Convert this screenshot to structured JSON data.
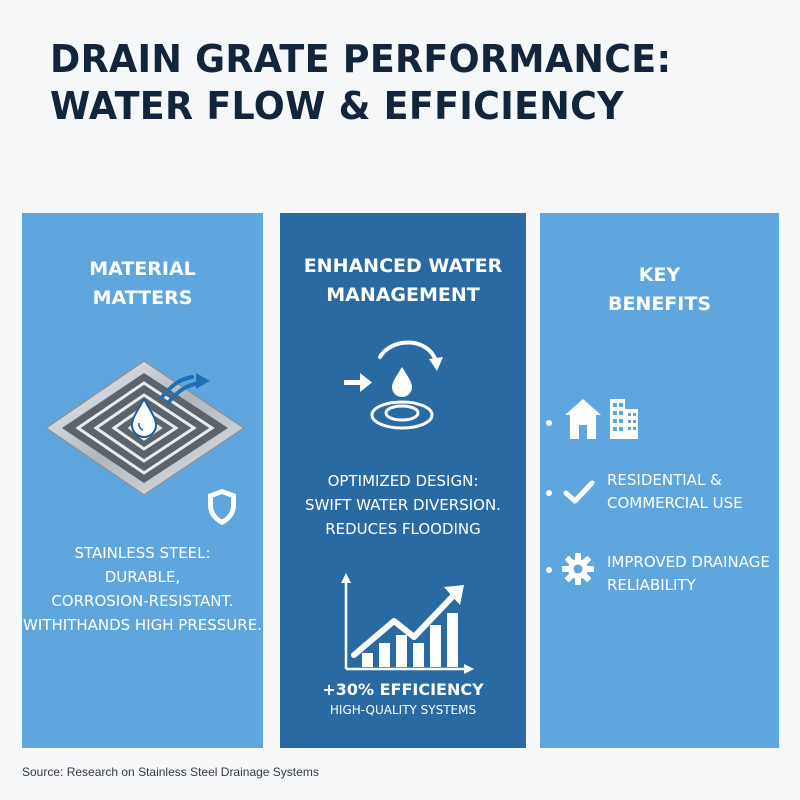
{
  "header": {
    "title_line1": "DRAIN GRATE PERFORMANCE:",
    "title_line2": "WATER FLOW & EFFICIENCY"
  },
  "panels": {
    "material": {
      "title_line1": "MATERIAL",
      "title_line2": "MATTERS",
      "body_line1": "STAINLESS STEEL:",
      "body_line2": "DURABLE,",
      "body_line3": "CORROSION-RESISTANT.",
      "body_line4": "WITHITHANDS HIGH PRESSURE.",
      "icons": [
        "drain-grate-icon",
        "water-drop-icon",
        "flow-arrow-icon",
        "shield-icon"
      ]
    },
    "water_management": {
      "title_line1": "ENHANCED WATER",
      "title_line2": "MANAGEMENT",
      "body_line1": "OPTIMIZED DESIGN:",
      "body_line2": "SWIFT WATER DIVERSION.",
      "body_line3": "REDUCES FLOODING",
      "stat_value": "+30% EFFICIENCY",
      "stat_caption": "HIGH-QUALITY SYSTEMS",
      "icons": [
        "water-diversion-icon",
        "growth-chart-icon"
      ]
    },
    "benefits": {
      "title_line1": "KEY",
      "title_line2": "BENEFITS",
      "items": [
        {
          "icon": "buildings-icon",
          "line1": "",
          "line2": ""
        },
        {
          "icon": "checkmark-icon",
          "line1": "RESIDENTIAL &",
          "line2": "COMMERCIAL USE"
        },
        {
          "icon": "gear-icon",
          "line1": "IMPROVED DRAINAGE",
          "line2": "RELIABILITY"
        }
      ]
    }
  },
  "footer": {
    "source": "Source: Research on Stainless Steel Drainage Systems"
  },
  "colors": {
    "background": "#f6f7f8",
    "title_text": "#13253a",
    "panel_light": "#5ea6dd",
    "panel_dark": "#2a6aa3",
    "panel_text": "#ffffff"
  }
}
